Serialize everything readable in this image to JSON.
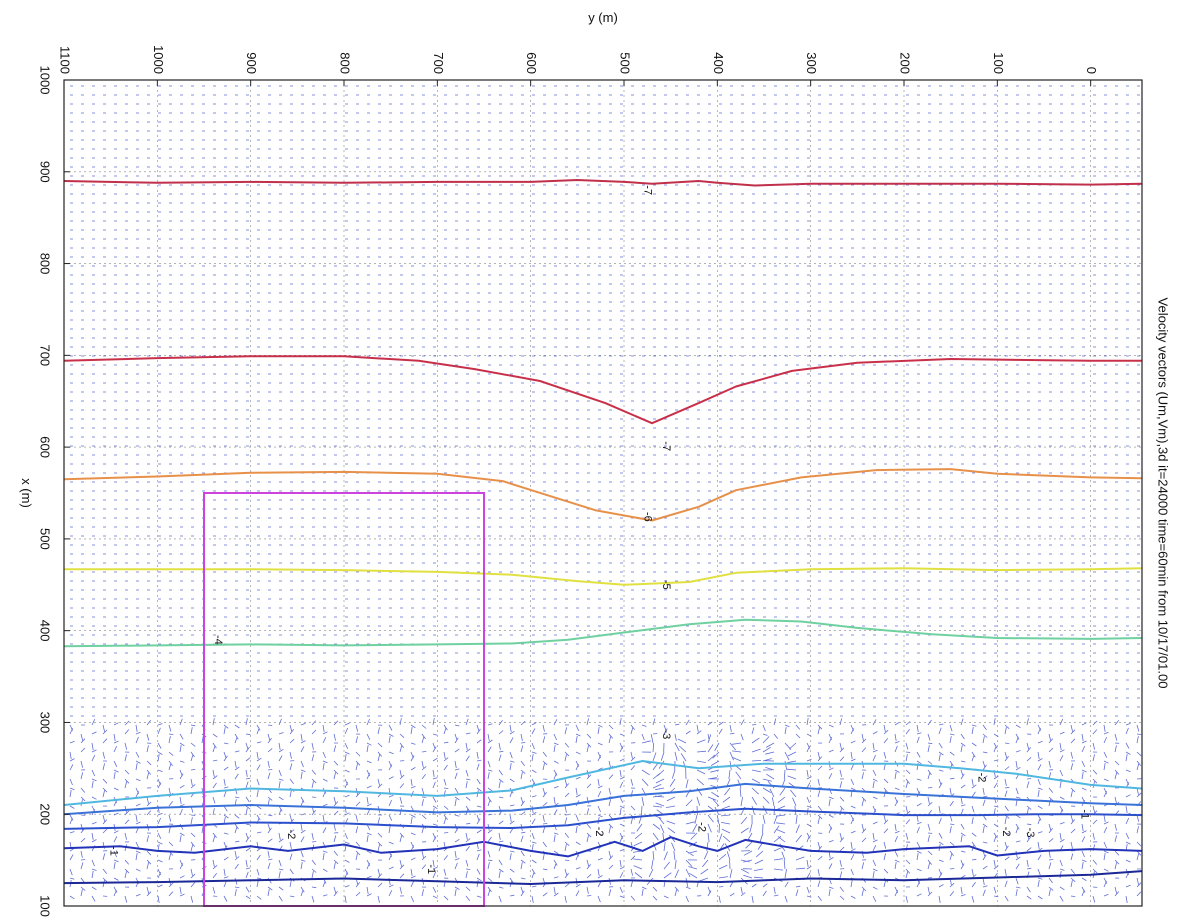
{
  "chart_data": {
    "type": "line",
    "title": "Velocity vectors (Um,Vm),3d  it=24000  time=60min from 10/17/01.00",
    "xlabel": "x (m)",
    "ylabel": "y (m)",
    "x_ticks": [
      "1000",
      "900",
      "800",
      "700",
      "600",
      "500",
      "400",
      "300",
      "200",
      "100"
    ],
    "y_ticks": [
      "1100",
      "1000",
      "900",
      "800",
      "700",
      "600",
      "500",
      "400",
      "300",
      "200",
      "100",
      "0"
    ],
    "xlim": [
      100,
      1000
    ],
    "ylim": [
      -55,
      1100
    ],
    "grid": true,
    "series": [
      {
        "color": "#c0304a",
        "values": [
          [
            890,
            1100
          ],
          [
            888,
            1000
          ],
          [
            889,
            900
          ],
          [
            888,
            800
          ],
          [
            889,
            700
          ],
          [
            889,
            600
          ],
          [
            891,
            550
          ],
          [
            889,
            500
          ],
          [
            887,
            470
          ],
          [
            890,
            420
          ],
          [
            888,
            400
          ],
          [
            885,
            360
          ],
          [
            887,
            300
          ],
          [
            887,
            200
          ],
          [
            887,
            100
          ],
          [
            886,
            0
          ],
          [
            887,
            -55
          ]
        ]
      },
      {
        "color": "#c8304a",
        "values": [
          [
            694,
            1100
          ],
          [
            697,
            1000
          ],
          [
            699,
            900
          ],
          [
            699,
            800
          ],
          [
            694,
            720
          ],
          [
            685,
            660
          ],
          [
            672,
            590
          ],
          [
            648,
            520
          ],
          [
            626,
            470
          ],
          [
            648,
            420
          ],
          [
            666,
            380
          ],
          [
            683,
            320
          ],
          [
            692,
            250
          ],
          [
            696,
            150
          ],
          [
            695,
            80
          ],
          [
            694,
            0
          ],
          [
            694,
            -55
          ]
        ]
      },
      {
        "color": "#e7904a",
        "values": [
          [
            565,
            1100
          ],
          [
            568,
            1000
          ],
          [
            572,
            900
          ],
          [
            573,
            800
          ],
          [
            571,
            700
          ],
          [
            563,
            630
          ],
          [
            547,
            580
          ],
          [
            531,
            530
          ],
          [
            520,
            470
          ],
          [
            535,
            420
          ],
          [
            553,
            380
          ],
          [
            567,
            310
          ],
          [
            575,
            230
          ],
          [
            576,
            150
          ],
          [
            571,
            100
          ],
          [
            567,
            0
          ],
          [
            566,
            -55
          ]
        ]
      },
      {
        "color": "#e0e040",
        "values": [
          [
            467,
            1100
          ],
          [
            467,
            1000
          ],
          [
            467,
            900
          ],
          [
            466,
            800
          ],
          [
            464,
            700
          ],
          [
            461,
            620
          ],
          [
            454,
            550
          ],
          [
            450,
            500
          ],
          [
            453,
            430
          ],
          [
            463,
            380
          ],
          [
            467,
            300
          ],
          [
            468,
            200
          ],
          [
            466,
            100
          ],
          [
            467,
            0
          ],
          [
            468,
            -55
          ]
        ]
      },
      {
        "color": "#6fd0a0",
        "values": [
          [
            383,
            1100
          ],
          [
            384,
            1000
          ],
          [
            385,
            900
          ],
          [
            384,
            800
          ],
          [
            385,
            700
          ],
          [
            386,
            620
          ],
          [
            390,
            560
          ],
          [
            398,
            500
          ],
          [
            407,
            430
          ],
          [
            412,
            370
          ],
          [
            410,
            310
          ],
          [
            403,
            250
          ],
          [
            396,
            170
          ],
          [
            392,
            100
          ],
          [
            391,
            0
          ],
          [
            392,
            -55
          ]
        ]
      },
      {
        "color": "#50b8e0",
        "values": [
          [
            210,
            1100
          ],
          [
            220,
            1000
          ],
          [
            228,
            900
          ],
          [
            225,
            800
          ],
          [
            220,
            700
          ],
          [
            226,
            620
          ],
          [
            240,
            560
          ],
          [
            258,
            480
          ],
          [
            250,
            420
          ],
          [
            255,
            350
          ],
          [
            255,
            280
          ],
          [
            255,
            200
          ],
          [
            250,
            140
          ],
          [
            244,
            80
          ],
          [
            232,
            0
          ],
          [
            228,
            -55
          ]
        ]
      },
      {
        "color": "#3a72d8",
        "values": [
          [
            200,
            1100
          ],
          [
            207,
            1000
          ],
          [
            210,
            900
          ],
          [
            207,
            800
          ],
          [
            202,
            700
          ],
          [
            204,
            620
          ],
          [
            210,
            560
          ],
          [
            220,
            500
          ],
          [
            225,
            430
          ],
          [
            233,
            370
          ],
          [
            228,
            300
          ],
          [
            222,
            200
          ],
          [
            218,
            120
          ],
          [
            215,
            60
          ],
          [
            212,
            0
          ],
          [
            210,
            -55
          ]
        ]
      },
      {
        "color": "#2c4fcc",
        "values": [
          [
            184,
            1100
          ],
          [
            186,
            1000
          ],
          [
            191,
            900
          ],
          [
            190,
            800
          ],
          [
            186,
            700
          ],
          [
            185,
            620
          ],
          [
            188,
            560
          ],
          [
            196,
            500
          ],
          [
            202,
            430
          ],
          [
            206,
            370
          ],
          [
            203,
            300
          ],
          [
            199,
            200
          ],
          [
            199,
            120
          ],
          [
            200,
            60
          ],
          [
            200,
            0
          ],
          [
            199,
            -55
          ]
        ]
      },
      {
        "color": "#2233b8",
        "values": [
          [
            163,
            1100
          ],
          [
            165,
            1040
          ],
          [
            160,
            1000
          ],
          [
            158,
            960
          ],
          [
            165,
            900
          ],
          [
            160,
            860
          ],
          [
            167,
            800
          ],
          [
            158,
            760
          ],
          [
            162,
            700
          ],
          [
            170,
            650
          ],
          [
            160,
            600
          ],
          [
            154,
            560
          ],
          [
            170,
            510
          ],
          [
            160,
            480
          ],
          [
            175,
            450
          ],
          [
            165,
            420
          ],
          [
            160,
            400
          ],
          [
            172,
            370
          ],
          [
            165,
            330
          ],
          [
            160,
            300
          ],
          [
            158,
            240
          ],
          [
            162,
            200
          ],
          [
            165,
            130
          ],
          [
            155,
            100
          ],
          [
            160,
            50
          ],
          [
            162,
            0
          ],
          [
            160,
            -55
          ]
        ]
      },
      {
        "color": "#1a2898",
        "values": [
          [
            125,
            1100
          ],
          [
            126,
            1000
          ],
          [
            128,
            900
          ],
          [
            130,
            800
          ],
          [
            127,
            700
          ],
          [
            124,
            600
          ],
          [
            128,
            500
          ],
          [
            126,
            400
          ],
          [
            130,
            300
          ],
          [
            128,
            200
          ],
          [
            131,
            100
          ],
          [
            134,
            0
          ],
          [
            138,
            -55
          ]
        ]
      }
    ],
    "contour_labels": [
      {
        "text": "-7",
        "x": 880,
        "y": 478
      },
      {
        "text": "-7",
        "x": 601,
        "y": 458
      },
      {
        "text": "-6",
        "x": 524,
        "y": 478
      },
      {
        "text": "-5",
        "x": 450,
        "y": 458
      },
      {
        "text": "-4",
        "x": 390,
        "y": 938
      },
      {
        "text": "-3",
        "x": 287,
        "y": 458
      },
      {
        "text": "-2",
        "x": 240,
        "y": 120
      },
      {
        "text": "-2",
        "x": 178,
        "y": 860
      },
      {
        "text": "-1",
        "x": 160,
        "y": 1050
      },
      {
        "text": "-2",
        "x": 181,
        "y": 530
      },
      {
        "text": "-2",
        "x": 181,
        "y": 94
      },
      {
        "text": "-3",
        "x": 180,
        "y": 68
      },
      {
        "text": "-2",
        "x": 186,
        "y": 420
      },
      {
        "text": "-1",
        "x": 140,
        "y": 710
      },
      {
        "text": "-1",
        "x": 200,
        "y": 10
      }
    ],
    "box": {
      "color": "#cc44dd",
      "x": [
        100,
        550
      ],
      "y": [
        650,
        950
      ]
    }
  }
}
